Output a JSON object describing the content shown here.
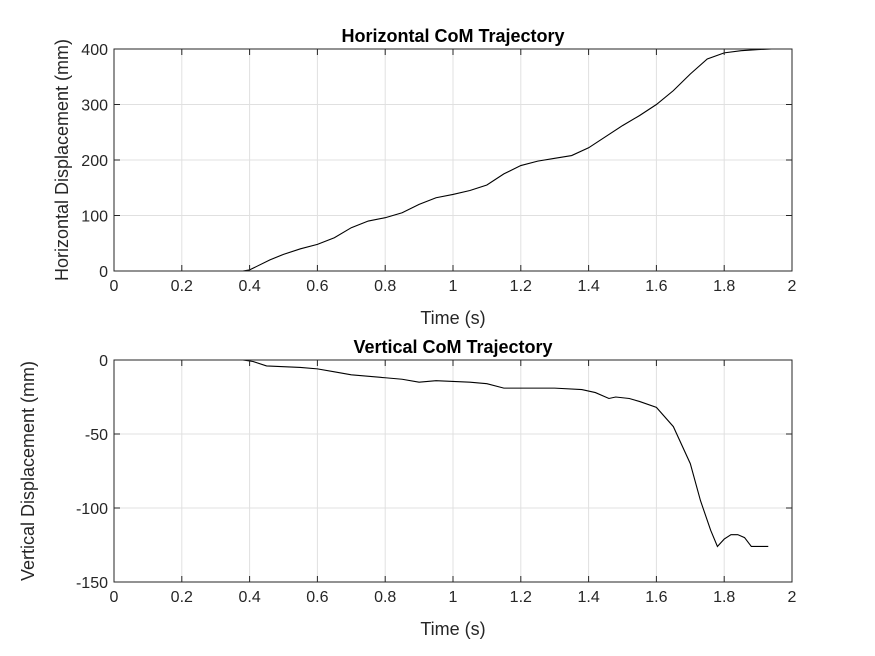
{
  "chart_data": [
    {
      "type": "line",
      "title": "Horizontal CoM Trajectory",
      "xlabel": "Time (s)",
      "ylabel": "Horizontal Displacement (mm)",
      "xlim": [
        0,
        2
      ],
      "ylim": [
        0,
        400
      ],
      "xticks": [
        0,
        0.2,
        0.4,
        0.6,
        0.8,
        1,
        1.2,
        1.4,
        1.6,
        1.8,
        2
      ],
      "xtick_labels": [
        "0",
        "0.2",
        "0.4",
        "0.6",
        "0.8",
        "1",
        "1.2",
        "1.4",
        "1.6",
        "1.8",
        "2"
      ],
      "yticks": [
        0,
        100,
        200,
        300,
        400
      ],
      "ytick_labels": [
        "0",
        "100",
        "200",
        "300",
        "400"
      ],
      "grid": true,
      "series": [
        {
          "x": [
            0,
            0.2,
            0.38,
            0.4,
            0.42,
            0.46,
            0.5,
            0.55,
            0.6,
            0.65,
            0.7,
            0.75,
            0.8,
            0.85,
            0.9,
            0.95,
            1.0,
            1.05,
            1.1,
            1.15,
            1.2,
            1.25,
            1.3,
            1.35,
            1.4,
            1.45,
            1.5,
            1.55,
            1.6,
            1.65,
            1.7,
            1.75,
            1.8,
            1.85,
            1.9,
            1.94
          ],
          "y": [
            0,
            0,
            0,
            2,
            8,
            20,
            30,
            40,
            48,
            60,
            78,
            90,
            96,
            105,
            120,
            132,
            138,
            145,
            155,
            175,
            190,
            198,
            203,
            208,
            222,
            242,
            262,
            280,
            300,
            325,
            355,
            382,
            393,
            397,
            399,
            400
          ]
        }
      ]
    },
    {
      "type": "line",
      "title": "Vertical CoM Trajectory",
      "xlabel": "Time (s)",
      "ylabel": "Vertical Displacement (mm)",
      "xlim": [
        0,
        2
      ],
      "ylim": [
        -150,
        0
      ],
      "xticks": [
        0,
        0.2,
        0.4,
        0.6,
        0.8,
        1,
        1.2,
        1.4,
        1.6,
        1.8,
        2
      ],
      "xtick_labels": [
        "0",
        "0.2",
        "0.4",
        "0.6",
        "0.8",
        "1",
        "1.2",
        "1.4",
        "1.6",
        "1.8",
        "2"
      ],
      "yticks": [
        -150,
        -100,
        -50,
        0
      ],
      "ytick_labels": [
        "-150",
        "-100",
        "-50",
        "0"
      ],
      "grid": true,
      "series": [
        {
          "x": [
            0,
            0.2,
            0.38,
            0.41,
            0.45,
            0.55,
            0.6,
            0.65,
            0.7,
            0.8,
            0.85,
            0.9,
            0.95,
            1.05,
            1.1,
            1.15,
            1.2,
            1.3,
            1.38,
            1.42,
            1.46,
            1.48,
            1.52,
            1.55,
            1.6,
            1.65,
            1.7,
            1.73,
            1.76,
            1.78,
            1.8,
            1.82,
            1.84,
            1.86,
            1.88,
            1.93
          ],
          "y": [
            0,
            0,
            0,
            -1,
            -4,
            -5,
            -6,
            -8,
            -10,
            -12,
            -13,
            -15,
            -14,
            -15,
            -16,
            -19,
            -19,
            -19,
            -20,
            -22,
            -26,
            -25,
            -26,
            -28,
            -32,
            -45,
            -70,
            -95,
            -115,
            -126,
            -121,
            -118,
            -118,
            -120,
            -126,
            -126
          ]
        }
      ]
    }
  ]
}
